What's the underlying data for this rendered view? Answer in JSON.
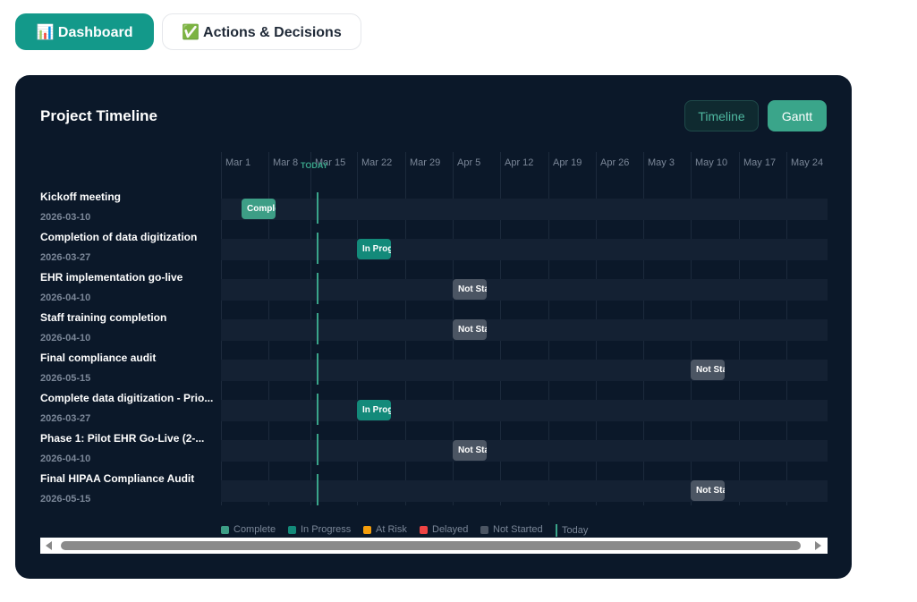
{
  "tabs": [
    "📊 Dashboard",
    "✅ Actions & Decisions"
  ],
  "card": {
    "title": "Project Timeline",
    "buttons": [
      "Timeline",
      "Gantt"
    ],
    "columns": [
      "Mar 1",
      "Mar 8",
      "Mar 15",
      "Mar 22",
      "Mar 29",
      "Apr 5",
      "Apr 12",
      "Apr 19",
      "Apr 26",
      "May 3",
      "May 10",
      "May 17",
      "May 24"
    ],
    "today_label": "TODAY",
    "tasks": [
      {
        "name": "Kickoff meeting",
        "date": "2026-03-10",
        "status": "Complete"
      },
      {
        "name": "Completion of data digitization",
        "date": "2026-03-27",
        "status": "In Progress"
      },
      {
        "name": "EHR implementation go-live",
        "date": "2026-04-10",
        "status": "Not Started"
      },
      {
        "name": "Staff training completion",
        "date": "2026-04-10",
        "status": "Not Started"
      },
      {
        "name": "Final compliance audit",
        "date": "2026-05-15",
        "status": "Not Started"
      },
      {
        "name": "Complete data digitization - Prio...",
        "date": "2026-03-27",
        "status": "In Progress"
      },
      {
        "name": "Phase 1: Pilot EHR Go-Live (2-...",
        "date": "2026-04-10",
        "status": "Not Started"
      },
      {
        "name": "Final HIPAA Compliance Audit",
        "date": "2026-05-15",
        "status": "Not Started"
      }
    ],
    "legend": [
      "Complete",
      "In Progress",
      "At Risk",
      "Delayed",
      "Not Started",
      "Today"
    ]
  }
}
